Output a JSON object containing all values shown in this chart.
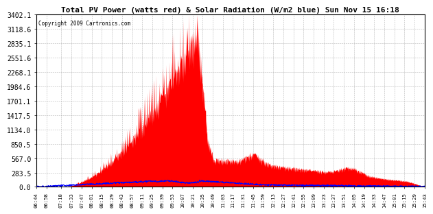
{
  "title": "Total PV Power (watts red) & Solar Radiation (W/m2 blue) Sun Nov 15 16:18",
  "copyright": "Copyright 2009 Cartronics.com",
  "bg_color": "#ffffff",
  "plot_bg_color": "#ffffff",
  "grid_color": "#888888",
  "red_color": "#ff0000",
  "blue_color": "#0000ff",
  "ymax": 3402.1,
  "ymin": 0.0,
  "yticks": [
    0.0,
    283.5,
    567.0,
    850.5,
    1134.0,
    1417.5,
    1701.1,
    1984.6,
    2268.1,
    2551.6,
    2835.1,
    3118.6,
    3402.1
  ],
  "xtick_labels": [
    "06:44",
    "06:58",
    "07:18",
    "07:33",
    "07:47",
    "08:01",
    "08:15",
    "08:29",
    "08:43",
    "08:57",
    "09:11",
    "09:25",
    "09:39",
    "09:53",
    "10:07",
    "10:21",
    "10:35",
    "10:49",
    "11:03",
    "11:17",
    "11:31",
    "11:45",
    "11:59",
    "12:13",
    "12:27",
    "12:41",
    "12:55",
    "13:09",
    "13:23",
    "13:37",
    "13:51",
    "14:05",
    "14:19",
    "14:33",
    "14:47",
    "15:01",
    "15:15",
    "15:29",
    "15:43"
  ]
}
